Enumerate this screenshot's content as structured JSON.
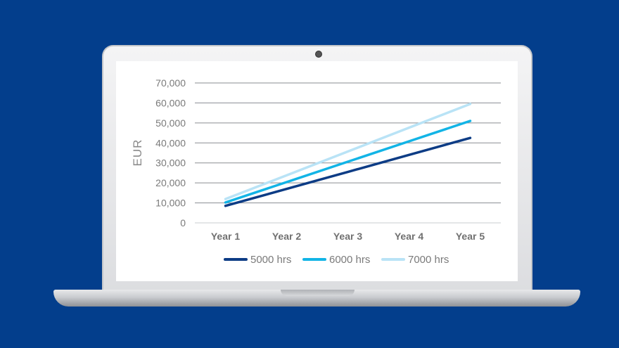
{
  "chart_data": {
    "type": "line",
    "categories": [
      "Year 1",
      "Year 2",
      "Year 3",
      "Year 4",
      "Year 5"
    ],
    "ylabel": "EUR",
    "xlabel": "",
    "ylim": [
      0,
      70000
    ],
    "yticks": [
      "0",
      "10,000",
      "20,000",
      "30,000",
      "40,000",
      "50,000",
      "60,000",
      "70,000"
    ],
    "grid": true,
    "legend_position": "bottom",
    "series": [
      {
        "name": "5000 hrs",
        "color": "#0d3c85",
        "values": [
          8500,
          17000,
          25500,
          34000,
          42500
        ]
      },
      {
        "name": "6000 hrs",
        "color": "#12b4e6",
        "values": [
          10200,
          20400,
          30600,
          40800,
          51000
        ]
      },
      {
        "name": "7000 hrs",
        "color": "#b9e3f6",
        "values": [
          11900,
          23800,
          35700,
          47600,
          59500
        ]
      }
    ]
  }
}
